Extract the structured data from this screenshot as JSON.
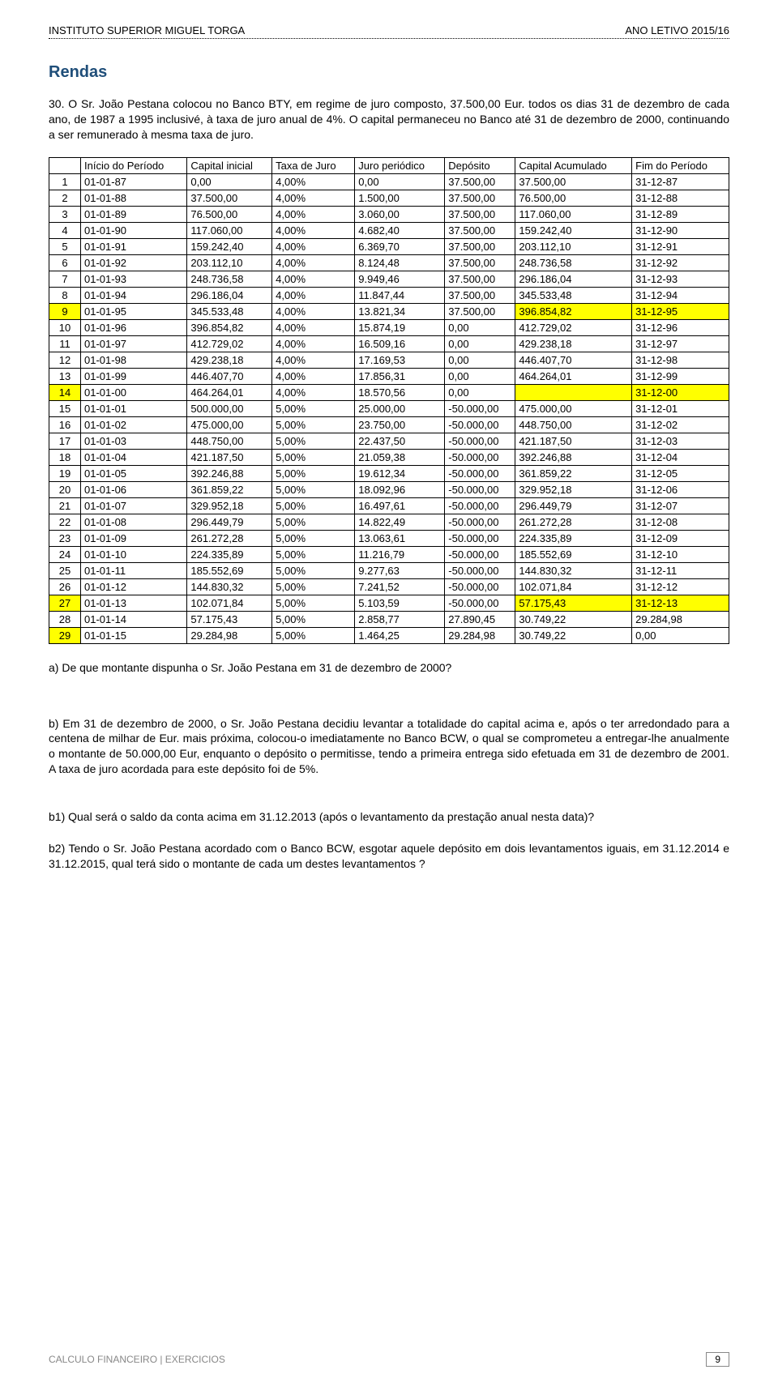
{
  "header": {
    "left": "INSTITUTO SUPERIOR MIGUEL TORGA",
    "right": "ANO LETIVO 2015/16"
  },
  "title": "Rendas",
  "intro": "30. O Sr. João Pestana colocou no Banco BTY, em regime de juro composto, 37.500,00 Eur. todos os dias 31 de dezembro de cada ano, de 1987 a 1995 inclusivé, à taxa de juro anual de 4%. O capital permaneceu no Banco até 31 de dezembro de 2000, continuando a ser remunerado à mesma taxa de juro.",
  "table": {
    "headers": [
      "",
      "Início do Período",
      "Capital inicial",
      "Taxa de Juro",
      "Juro periódico",
      "Depósito",
      "Capital Acumulado",
      "Fim do Período"
    ],
    "rows": [
      {
        "n": "1",
        "ini": "01-01-87",
        "cap": "0,00",
        "tax": "4,00%",
        "jur": "0,00",
        "dep": "37.500,00",
        "acc": "37.500,00",
        "fim": "31-12-87"
      },
      {
        "n": "2",
        "ini": "01-01-88",
        "cap": "37.500,00",
        "tax": "4,00%",
        "jur": "1.500,00",
        "dep": "37.500,00",
        "acc": "76.500,00",
        "fim": "31-12-88"
      },
      {
        "n": "3",
        "ini": "01-01-89",
        "cap": "76.500,00",
        "tax": "4,00%",
        "jur": "3.060,00",
        "dep": "37.500,00",
        "acc": "117.060,00",
        "fim": "31-12-89"
      },
      {
        "n": "4",
        "ini": "01-01-90",
        "cap": "117.060,00",
        "tax": "4,00%",
        "jur": "4.682,40",
        "dep": "37.500,00",
        "acc": "159.242,40",
        "fim": "31-12-90"
      },
      {
        "n": "5",
        "ini": "01-01-91",
        "cap": "159.242,40",
        "tax": "4,00%",
        "jur": "6.369,70",
        "dep": "37.500,00",
        "acc": "203.112,10",
        "fim": "31-12-91"
      },
      {
        "n": "6",
        "ini": "01-01-92",
        "cap": "203.112,10",
        "tax": "4,00%",
        "jur": "8.124,48",
        "dep": "37.500,00",
        "acc": "248.736,58",
        "fim": "31-12-92"
      },
      {
        "n": "7",
        "ini": "01-01-93",
        "cap": "248.736,58",
        "tax": "4,00%",
        "jur": "9.949,46",
        "dep": "37.500,00",
        "acc": "296.186,04",
        "fim": "31-12-93"
      },
      {
        "n": "8",
        "ini": "01-01-94",
        "cap": "296.186,04",
        "tax": "4,00%",
        "jur": "11.847,44",
        "dep": "37.500,00",
        "acc": "345.533,48",
        "fim": "31-12-94"
      },
      {
        "n": "9",
        "ini": "01-01-95",
        "cap": "345.533,48",
        "tax": "4,00%",
        "jur": "13.821,34",
        "dep": "37.500,00",
        "acc": "396.854,82",
        "fim": "31-12-95",
        "hl": [
          "n",
          "acc",
          "fim"
        ]
      },
      {
        "n": "10",
        "ini": "01-01-96",
        "cap": "396.854,82",
        "tax": "4,00%",
        "jur": "15.874,19",
        "dep": "0,00",
        "acc": "412.729,02",
        "fim": "31-12-96"
      },
      {
        "n": "11",
        "ini": "01-01-97",
        "cap": "412.729,02",
        "tax": "4,00%",
        "jur": "16.509,16",
        "dep": "0,00",
        "acc": "429.238,18",
        "fim": "31-12-97"
      },
      {
        "n": "12",
        "ini": "01-01-98",
        "cap": "429.238,18",
        "tax": "4,00%",
        "jur": "17.169,53",
        "dep": "0,00",
        "acc": "446.407,70",
        "fim": "31-12-98"
      },
      {
        "n": "13",
        "ini": "01-01-99",
        "cap": "446.407,70",
        "tax": "4,00%",
        "jur": "17.856,31",
        "dep": "0,00",
        "acc": "464.264,01",
        "fim": "31-12-99"
      },
      {
        "n": "14",
        "ini": "01-01-00",
        "cap": "464.264,01",
        "tax": "4,00%",
        "jur": "18.570,56",
        "dep": "0,00",
        "acc": "",
        "fim": "31-12-00",
        "hl": [
          "n",
          "acc",
          "fim"
        ]
      },
      {
        "n": "15",
        "ini": "01-01-01",
        "cap": "500.000,00",
        "tax": "5,00%",
        "jur": "25.000,00",
        "dep": "-50.000,00",
        "acc": "475.000,00",
        "fim": "31-12-01"
      },
      {
        "n": "16",
        "ini": "01-01-02",
        "cap": "475.000,00",
        "tax": "5,00%",
        "jur": "23.750,00",
        "dep": "-50.000,00",
        "acc": "448.750,00",
        "fim": "31-12-02"
      },
      {
        "n": "17",
        "ini": "01-01-03",
        "cap": "448.750,00",
        "tax": "5,00%",
        "jur": "22.437,50",
        "dep": "-50.000,00",
        "acc": "421.187,50",
        "fim": "31-12-03"
      },
      {
        "n": "18",
        "ini": "01-01-04",
        "cap": "421.187,50",
        "tax": "5,00%",
        "jur": "21.059,38",
        "dep": "-50.000,00",
        "acc": "392.246,88",
        "fim": "31-12-04"
      },
      {
        "n": "19",
        "ini": "01-01-05",
        "cap": "392.246,88",
        "tax": "5,00%",
        "jur": "19.612,34",
        "dep": "-50.000,00",
        "acc": "361.859,22",
        "fim": "31-12-05"
      },
      {
        "n": "20",
        "ini": "01-01-06",
        "cap": "361.859,22",
        "tax": "5,00%",
        "jur": "18.092,96",
        "dep": "-50.000,00",
        "acc": "329.952,18",
        "fim": "31-12-06"
      },
      {
        "n": "21",
        "ini": "01-01-07",
        "cap": "329.952,18",
        "tax": "5,00%",
        "jur": "16.497,61",
        "dep": "-50.000,00",
        "acc": "296.449,79",
        "fim": "31-12-07"
      },
      {
        "n": "22",
        "ini": "01-01-08",
        "cap": "296.449,79",
        "tax": "5,00%",
        "jur": "14.822,49",
        "dep": "-50.000,00",
        "acc": "261.272,28",
        "fim": "31-12-08"
      },
      {
        "n": "23",
        "ini": "01-01-09",
        "cap": "261.272,28",
        "tax": "5,00%",
        "jur": "13.063,61",
        "dep": "-50.000,00",
        "acc": "224.335,89",
        "fim": "31-12-09"
      },
      {
        "n": "24",
        "ini": "01-01-10",
        "cap": "224.335,89",
        "tax": "5,00%",
        "jur": "11.216,79",
        "dep": "-50.000,00",
        "acc": "185.552,69",
        "fim": "31-12-10"
      },
      {
        "n": "25",
        "ini": "01-01-11",
        "cap": "185.552,69",
        "tax": "5,00%",
        "jur": "9.277,63",
        "dep": "-50.000,00",
        "acc": "144.830,32",
        "fim": "31-12-11"
      },
      {
        "n": "26",
        "ini": "01-01-12",
        "cap": "144.830,32",
        "tax": "5,00%",
        "jur": "7.241,52",
        "dep": "-50.000,00",
        "acc": "102.071,84",
        "fim": "31-12-12"
      },
      {
        "n": "27",
        "ini": "01-01-13",
        "cap": "102.071,84",
        "tax": "5,00%",
        "jur": "5.103,59",
        "dep": "-50.000,00",
        "acc": "57.175,43",
        "fim": "31-12-13",
        "hl": [
          "n",
          "acc",
          "fim"
        ]
      },
      {
        "n": "28",
        "ini": "01-01-14",
        "cap": "57.175,43",
        "tax": "5,00%",
        "jur": "2.858,77",
        "dep": "27.890,45",
        "acc": "30.749,22",
        "fim": "29.284,98"
      },
      {
        "n": "29",
        "ini": "01-01-15",
        "cap": "29.284,98",
        "tax": "5,00%",
        "jur": "1.464,25",
        "dep": "29.284,98",
        "acc": "30.749,22",
        "fim": "0,00",
        "hl": [
          "n"
        ]
      }
    ]
  },
  "qa": {
    "a": "a) De que montante dispunha o Sr. João Pestana em 31 de dezembro de 2000?",
    "b": "b) Em 31 de dezembro de 2000, o Sr. João Pestana decidiu levantar a totalidade do capital acima e, após o ter arredondado para a centena de milhar de Eur. mais próxima, colocou-o imediatamente no Banco BCW, o qual se comprometeu a entregar-lhe anualmente o montante de 50.000,00 Eur, enquanto o depósito o permitisse, tendo a primeira entrega sido efetuada em 31 de dezembro de 2001. A taxa de juro acordada para este depósito foi de 5%.",
    "b1": "b1) Qual será o saldo da conta acima em 31.12.2013 (após o levantamento da prestação anual nesta data)?",
    "b2": "b2) Tendo o Sr. João Pestana acordado com o Banco BCW, esgotar aquele depósito em dois levantamentos iguais, em 31.12.2014 e 31.12.2015, qual terá sido o montante de cada um destes levantamentos ?"
  },
  "footer": {
    "left": "CALCULO FINANCEIRO | EXERCICIOS",
    "page": "9"
  },
  "colors": {
    "highlight": "#ffff00",
    "title": "#1f4e79"
  }
}
